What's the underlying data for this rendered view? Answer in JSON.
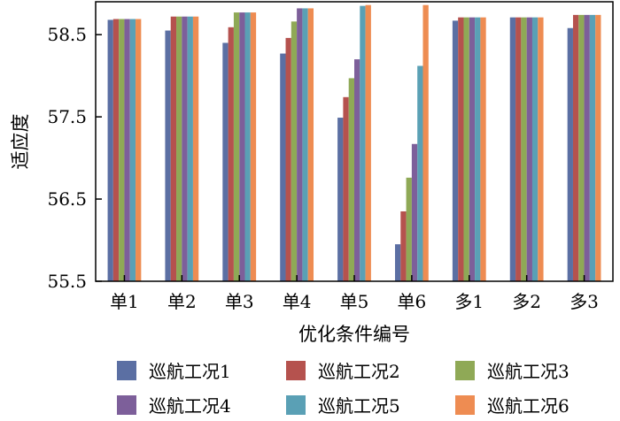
{
  "chart_data": {
    "type": "bar",
    "title": "",
    "xlabel": "优化条件编号",
    "ylabel": "适应度",
    "ylim": [
      55.5,
      58.9
    ],
    "yticks": [
      55.5,
      56.5,
      57.5,
      58.5
    ],
    "ytick_labels": [
      "55.5",
      "56.5",
      "57.5",
      "58.5"
    ],
    "grid": false,
    "legend_position": "bottom",
    "categories": [
      "单1",
      "单2",
      "单3",
      "单4",
      "单5",
      "单6",
      "多1",
      "多2",
      "多3"
    ],
    "series": [
      {
        "name": "巡航工况1",
        "color": "#5b6fa3",
        "values": [
          58.68,
          58.55,
          58.4,
          58.27,
          57.49,
          55.95,
          58.67,
          58.71,
          58.58
        ]
      },
      {
        "name": "巡航工况2",
        "color": "#b5524e",
        "values": [
          58.69,
          58.72,
          58.59,
          58.46,
          57.74,
          56.35,
          58.71,
          58.71,
          58.74
        ]
      },
      {
        "name": "巡航工况3",
        "color": "#8fa956",
        "values": [
          58.69,
          58.72,
          58.77,
          58.66,
          57.97,
          56.76,
          58.71,
          58.71,
          58.74
        ]
      },
      {
        "name": "巡航工况4",
        "color": "#7d5f9a",
        "values": [
          58.69,
          58.72,
          58.77,
          58.82,
          58.2,
          57.17,
          58.71,
          58.71,
          58.74
        ]
      },
      {
        "name": "巡航工况5",
        "color": "#5aa0b5",
        "values": [
          58.69,
          58.72,
          58.77,
          58.82,
          58.85,
          58.12,
          58.71,
          58.71,
          58.74
        ]
      },
      {
        "name": "巡航工况6",
        "color": "#ee8c52",
        "values": [
          58.69,
          58.72,
          58.77,
          58.82,
          58.86,
          58.86,
          58.71,
          58.71,
          58.74
        ]
      }
    ]
  }
}
